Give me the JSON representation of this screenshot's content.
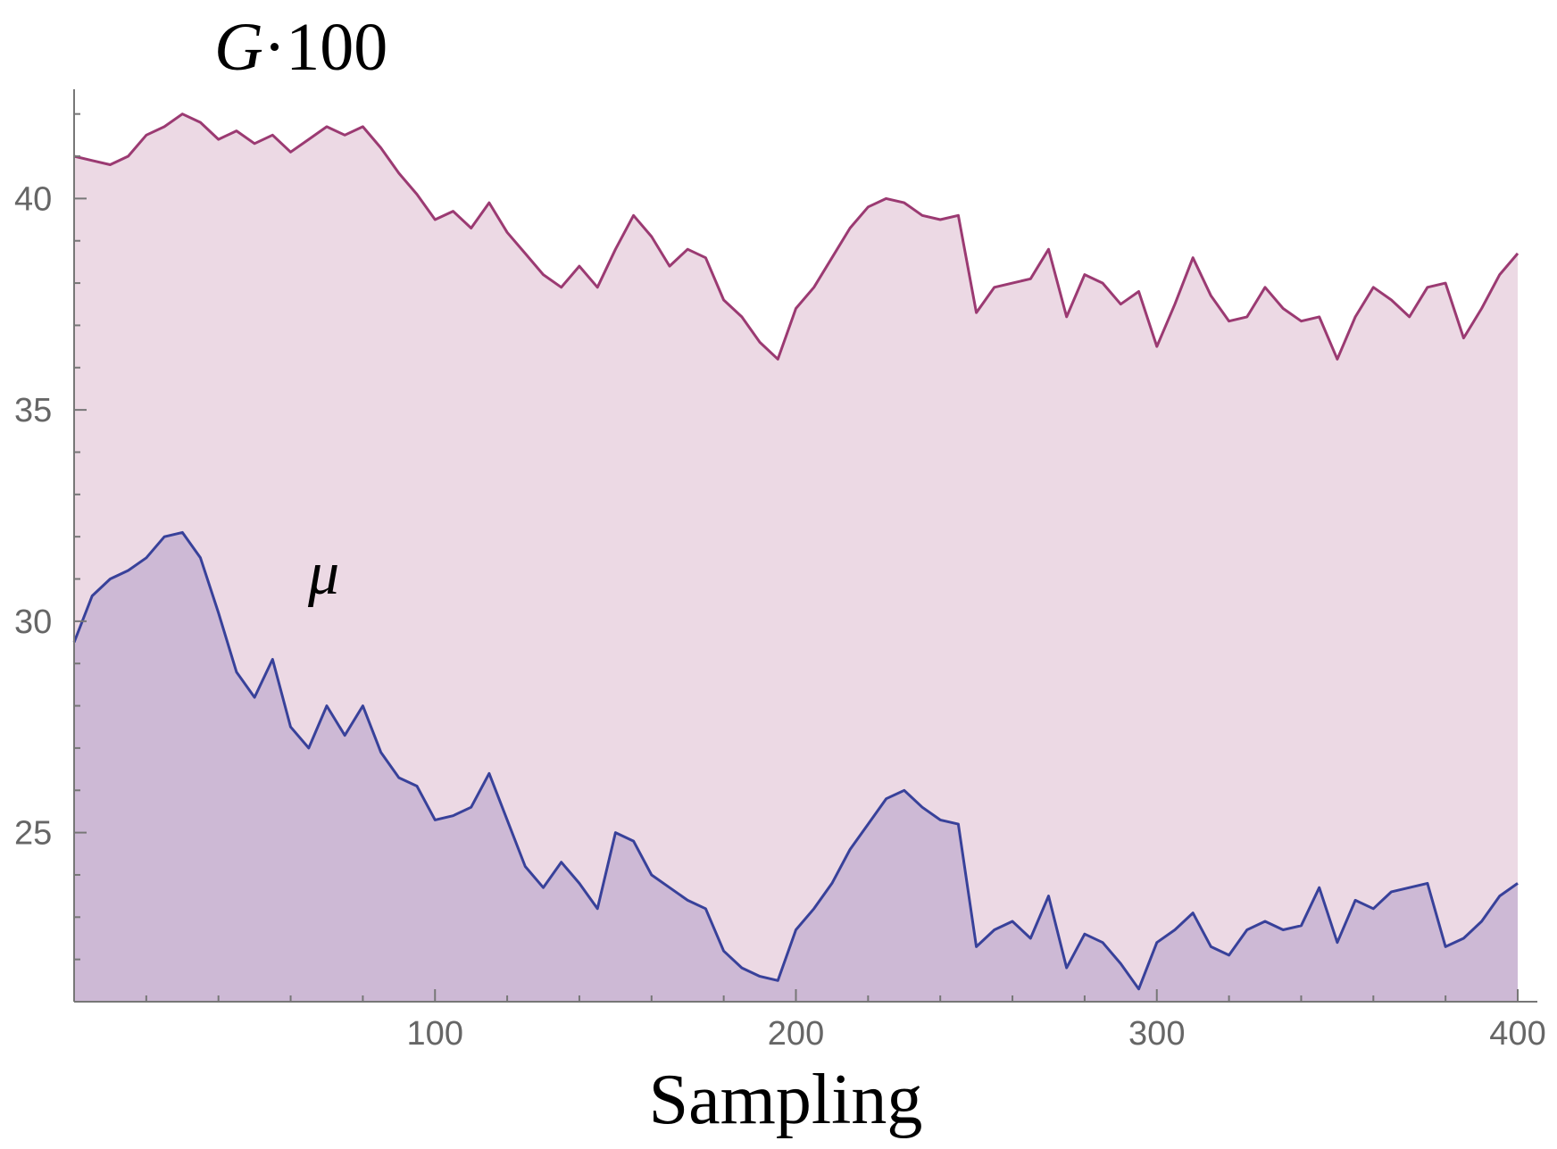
{
  "chart_data": {
    "type": "area",
    "title": "",
    "xlabel": "Sampling",
    "ylabel": "",
    "xlim": [
      0,
      400
    ],
    "ylim": [
      21,
      42.5
    ],
    "x_ticks": [
      100,
      200,
      300,
      400
    ],
    "y_ticks": [
      25,
      30,
      35,
      40
    ],
    "grid": false,
    "series": [
      {
        "name": "G·100",
        "name_main": "G",
        "name_suffix": "·100",
        "color": "#9b3a72",
        "fill": "#ecd9e4",
        "points": [
          [
            0,
            41.0
          ],
          [
            5,
            40.9
          ],
          [
            10,
            40.8
          ],
          [
            15,
            41.0
          ],
          [
            20,
            41.5
          ],
          [
            25,
            41.7
          ],
          [
            30,
            42.0
          ],
          [
            35,
            41.8
          ],
          [
            40,
            41.4
          ],
          [
            45,
            41.6
          ],
          [
            50,
            41.3
          ],
          [
            55,
            41.5
          ],
          [
            60,
            41.1
          ],
          [
            65,
            41.4
          ],
          [
            70,
            41.7
          ],
          [
            75,
            41.5
          ],
          [
            80,
            41.7
          ],
          [
            85,
            41.2
          ],
          [
            90,
            40.6
          ],
          [
            95,
            40.1
          ],
          [
            100,
            39.5
          ],
          [
            105,
            39.7
          ],
          [
            110,
            39.3
          ],
          [
            115,
            39.9
          ],
          [
            120,
            39.2
          ],
          [
            125,
            38.7
          ],
          [
            130,
            38.2
          ],
          [
            135,
            37.9
          ],
          [
            140,
            38.4
          ],
          [
            145,
            37.9
          ],
          [
            150,
            38.8
          ],
          [
            155,
            39.6
          ],
          [
            160,
            39.1
          ],
          [
            165,
            38.4
          ],
          [
            170,
            38.8
          ],
          [
            175,
            38.6
          ],
          [
            180,
            37.6
          ],
          [
            185,
            37.2
          ],
          [
            190,
            36.6
          ],
          [
            195,
            36.2
          ],
          [
            200,
            37.4
          ],
          [
            205,
            37.9
          ],
          [
            210,
            38.6
          ],
          [
            215,
            39.3
          ],
          [
            220,
            39.8
          ],
          [
            225,
            40.0
          ],
          [
            230,
            39.9
          ],
          [
            235,
            39.6
          ],
          [
            240,
            39.5
          ],
          [
            245,
            39.6
          ],
          [
            250,
            37.3
          ],
          [
            255,
            37.9
          ],
          [
            260,
            38.0
          ],
          [
            265,
            38.1
          ],
          [
            270,
            38.8
          ],
          [
            275,
            37.2
          ],
          [
            280,
            38.2
          ],
          [
            285,
            38.0
          ],
          [
            290,
            37.5
          ],
          [
            295,
            37.8
          ],
          [
            300,
            36.5
          ],
          [
            305,
            37.5
          ],
          [
            310,
            38.6
          ],
          [
            315,
            37.7
          ],
          [
            320,
            37.1
          ],
          [
            325,
            37.2
          ],
          [
            330,
            37.9
          ],
          [
            335,
            37.4
          ],
          [
            340,
            37.1
          ],
          [
            345,
            37.2
          ],
          [
            350,
            36.2
          ],
          [
            355,
            37.2
          ],
          [
            360,
            37.9
          ],
          [
            365,
            37.6
          ],
          [
            370,
            37.2
          ],
          [
            375,
            37.9
          ],
          [
            380,
            38.0
          ],
          [
            385,
            36.7
          ],
          [
            390,
            37.4
          ],
          [
            395,
            38.2
          ],
          [
            400,
            38.7
          ]
        ]
      },
      {
        "name": "μ",
        "color": "#38419a",
        "fill": "#cdb9d5",
        "points": [
          [
            0,
            29.5
          ],
          [
            5,
            30.6
          ],
          [
            10,
            31.0
          ],
          [
            15,
            31.2
          ],
          [
            20,
            31.5
          ],
          [
            25,
            32.0
          ],
          [
            30,
            32.1
          ],
          [
            35,
            31.5
          ],
          [
            40,
            30.2
          ],
          [
            45,
            28.8
          ],
          [
            50,
            28.2
          ],
          [
            55,
            29.1
          ],
          [
            60,
            27.5
          ],
          [
            65,
            27.0
          ],
          [
            70,
            28.0
          ],
          [
            75,
            27.3
          ],
          [
            80,
            28.0
          ],
          [
            85,
            26.9
          ],
          [
            90,
            26.3
          ],
          [
            95,
            26.1
          ],
          [
            100,
            25.3
          ],
          [
            105,
            25.4
          ],
          [
            110,
            25.6
          ],
          [
            115,
            26.4
          ],
          [
            120,
            25.3
          ],
          [
            125,
            24.2
          ],
          [
            130,
            23.7
          ],
          [
            135,
            24.3
          ],
          [
            140,
            23.8
          ],
          [
            145,
            23.2
          ],
          [
            150,
            25.0
          ],
          [
            155,
            24.8
          ],
          [
            160,
            24.0
          ],
          [
            165,
            23.7
          ],
          [
            170,
            23.4
          ],
          [
            175,
            23.2
          ],
          [
            180,
            22.2
          ],
          [
            185,
            21.8
          ],
          [
            190,
            21.6
          ],
          [
            195,
            21.5
          ],
          [
            200,
            22.7
          ],
          [
            205,
            23.2
          ],
          [
            210,
            23.8
          ],
          [
            215,
            24.6
          ],
          [
            220,
            25.2
          ],
          [
            225,
            25.8
          ],
          [
            230,
            26.0
          ],
          [
            235,
            25.6
          ],
          [
            240,
            25.3
          ],
          [
            245,
            25.2
          ],
          [
            250,
            22.3
          ],
          [
            255,
            22.7
          ],
          [
            260,
            22.9
          ],
          [
            265,
            22.5
          ],
          [
            270,
            23.5
          ],
          [
            275,
            21.8
          ],
          [
            280,
            22.6
          ],
          [
            285,
            22.4
          ],
          [
            290,
            21.9
          ],
          [
            295,
            21.3
          ],
          [
            300,
            22.4
          ],
          [
            305,
            22.7
          ],
          [
            310,
            23.1
          ],
          [
            315,
            22.3
          ],
          [
            320,
            22.1
          ],
          [
            325,
            22.7
          ],
          [
            330,
            22.9
          ],
          [
            335,
            22.7
          ],
          [
            340,
            22.8
          ],
          [
            345,
            23.7
          ],
          [
            350,
            22.4
          ],
          [
            355,
            23.4
          ],
          [
            360,
            23.2
          ],
          [
            365,
            23.6
          ],
          [
            370,
            23.7
          ],
          [
            375,
            23.8
          ],
          [
            380,
            22.3
          ],
          [
            385,
            22.5
          ],
          [
            390,
            22.9
          ],
          [
            395,
            23.5
          ],
          [
            400,
            23.8
          ]
        ]
      }
    ]
  }
}
